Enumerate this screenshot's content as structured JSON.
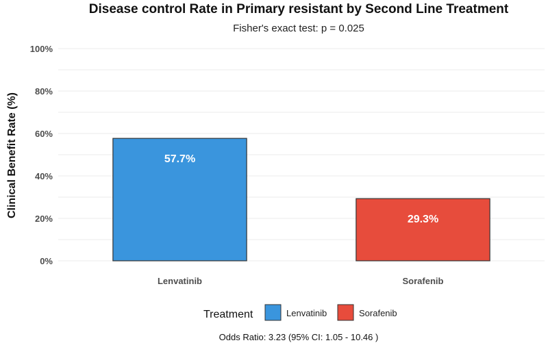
{
  "chart_data": {
    "type": "bar",
    "title": "Disease control Rate in Primary resistant by Second Line Treatment",
    "subtitle": "Fisher's exact test: p = 0.025",
    "ylabel": "Clinical Benefit Rate (%)",
    "xlabel": "",
    "ylim": [
      0,
      100
    ],
    "yticks": [
      0,
      20,
      40,
      60,
      80,
      100
    ],
    "ytick_labels": [
      "0%",
      "20%",
      "40%",
      "60%",
      "80%",
      "100%"
    ],
    "categories": [
      "Lenvatinib",
      "Sorafenib"
    ],
    "values": [
      57.7,
      29.3
    ],
    "data_labels": [
      "57.7%",
      "29.3%"
    ],
    "colors": [
      "#3A95DD",
      "#E74C3C"
    ],
    "grid": true,
    "legend": {
      "title": "Treatment",
      "placement": "bottom",
      "entries": [
        "Lenvatinib",
        "Sorafenib"
      ]
    },
    "caption": "Odds Ratio: 3.23 (95% CI: 1.05 - 10.46 )"
  }
}
